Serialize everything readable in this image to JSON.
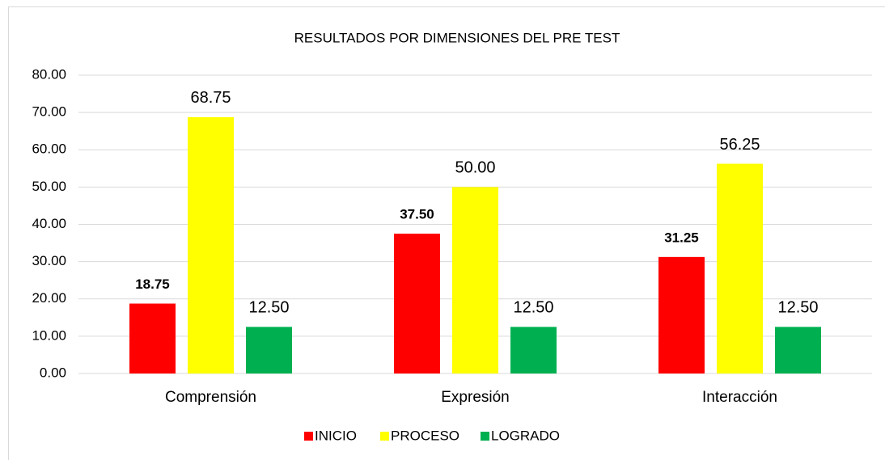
{
  "chart_data": {
    "type": "bar",
    "title": "RESULTADOS POR DIMENSIONES DEL PRE TEST",
    "categories": [
      "Comprensión",
      "Expresión",
      "Interacción"
    ],
    "series": [
      {
        "name": "INICIO",
        "color": "#ff0000",
        "values": [
          18.75,
          37.5,
          31.25
        ],
        "value_labels": [
          "18.75",
          "37.50",
          "31.25"
        ],
        "bold_labels": true
      },
      {
        "name": "PROCESO",
        "color": "#ffff00",
        "values": [
          68.75,
          50,
          56.25
        ],
        "value_labels": [
          "68.75",
          "50.00",
          "56.25"
        ]
      },
      {
        "name": "LOGRADO",
        "color": "#00b050",
        "values": [
          12.5,
          12.5,
          12.5
        ],
        "value_labels": [
          "12.50",
          "12.50",
          "12.50"
        ]
      }
    ],
    "ylim": [
      0,
      80
    ],
    "yticks": [
      {
        "value": 0,
        "label": "0.00"
      },
      {
        "value": 10,
        "label": "10.00"
      },
      {
        "value": 20,
        "label": "20.00"
      },
      {
        "value": 30,
        "label": "30.00"
      },
      {
        "value": 40,
        "label": "40.00"
      },
      {
        "value": 50,
        "label": "50.00"
      },
      {
        "value": 60,
        "label": "60.00"
      },
      {
        "value": 70,
        "label": "70.00"
      },
      {
        "value": 80,
        "label": "80.00"
      }
    ],
    "grid": true,
    "legend": "bottom"
  }
}
